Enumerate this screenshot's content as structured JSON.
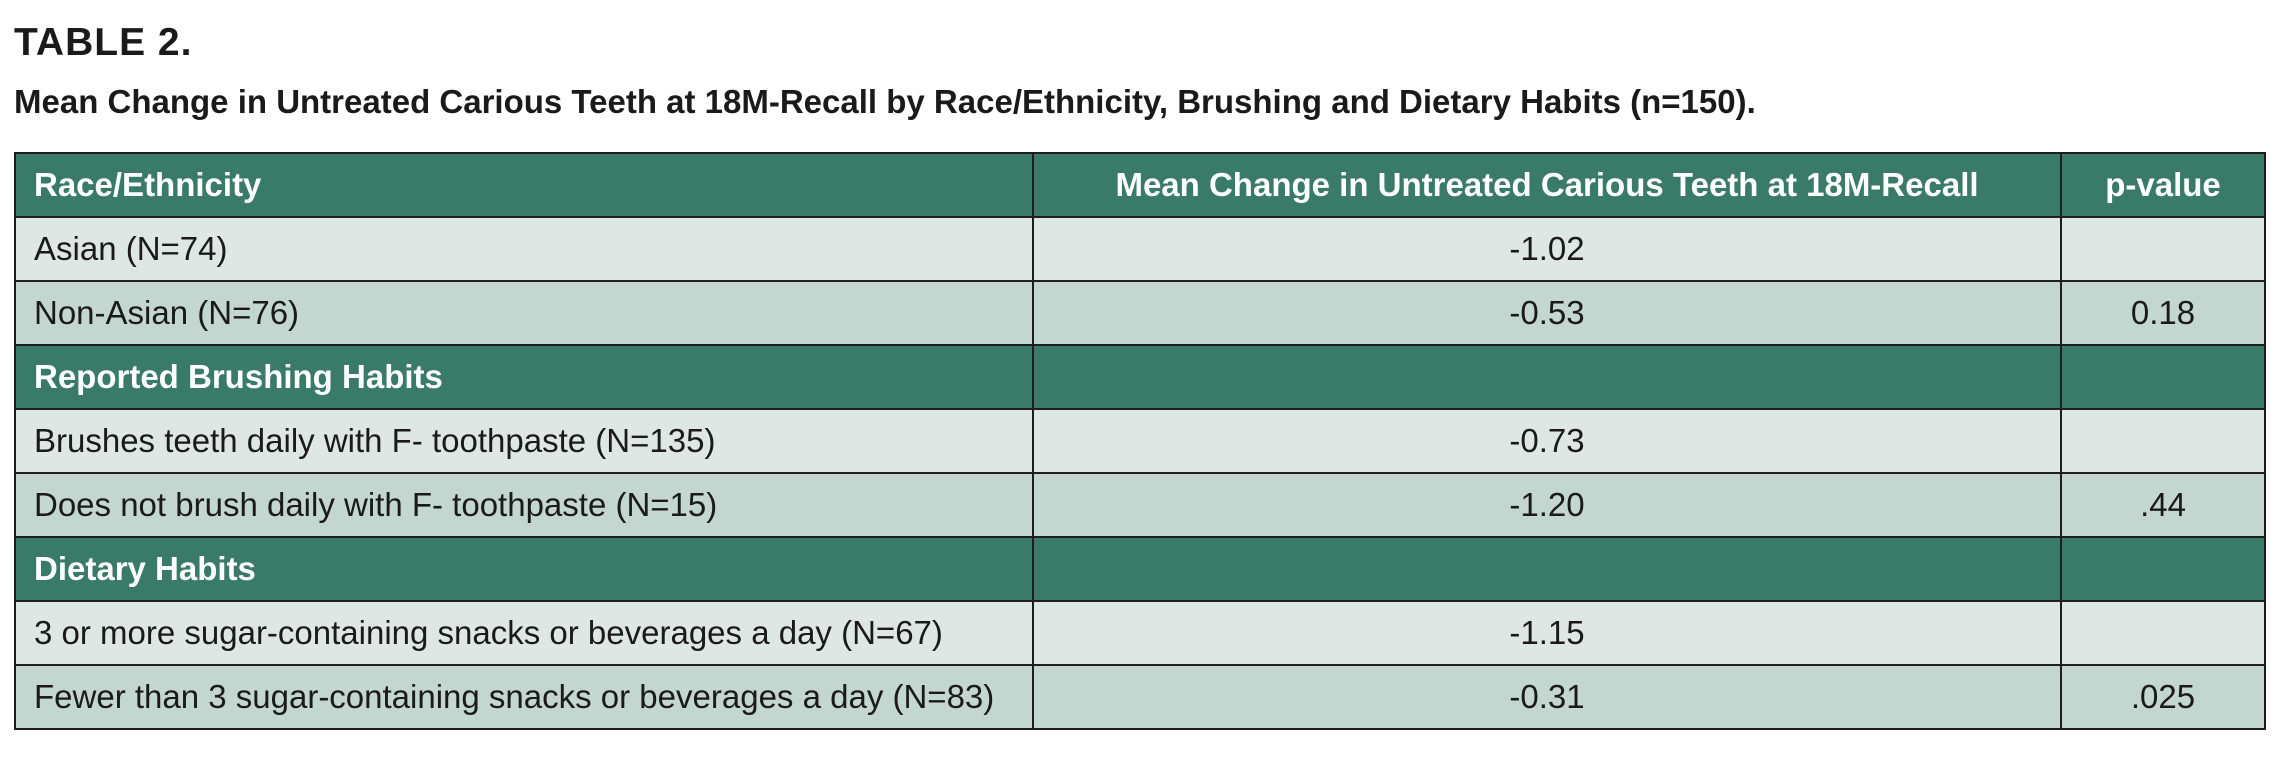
{
  "document": {
    "label": "TABLE 2.",
    "title": "Mean Change in Untreated Carious Teeth at 18M-Recall by Race/Ethnicity, Brushing and Dietary Habits (n=150)."
  },
  "table": {
    "headers": {
      "col1": "Race/Ethnicity",
      "col2": "Mean Change in Untreated Carious Teeth at 18M-Recall",
      "col3": "p-value"
    },
    "race": {
      "rows": [
        {
          "label": "Asian (N=74)",
          "mean_change": "-1.02",
          "p_value": ""
        },
        {
          "label": "Non-Asian (N=76)",
          "mean_change": "-0.53",
          "p_value": "0.18"
        }
      ]
    },
    "brushing": {
      "title": "Reported Brushing Habits",
      "rows": [
        {
          "label": "Brushes teeth daily with F- toothpaste (N=135)",
          "mean_change": "-0.73",
          "p_value": ""
        },
        {
          "label": "Does not brush daily with F- toothpaste (N=15)",
          "mean_change": "-1.20",
          "p_value": ".44"
        }
      ]
    },
    "dietary": {
      "title": "Dietary Habits",
      "rows": [
        {
          "label": "3 or more sugar-containing snacks or beverages a day (N=67)",
          "mean_change": "-1.15",
          "p_value": ""
        },
        {
          "label": "Fewer than 3 sugar-containing snacks or beverages a day (N=83)",
          "mean_change": "-0.31",
          "p_value": ".025"
        }
      ]
    },
    "colors": {
      "header_bg": "#3a7a68",
      "row_light": "#dfe7e4",
      "row_dark": "#c4d6d0"
    }
  }
}
